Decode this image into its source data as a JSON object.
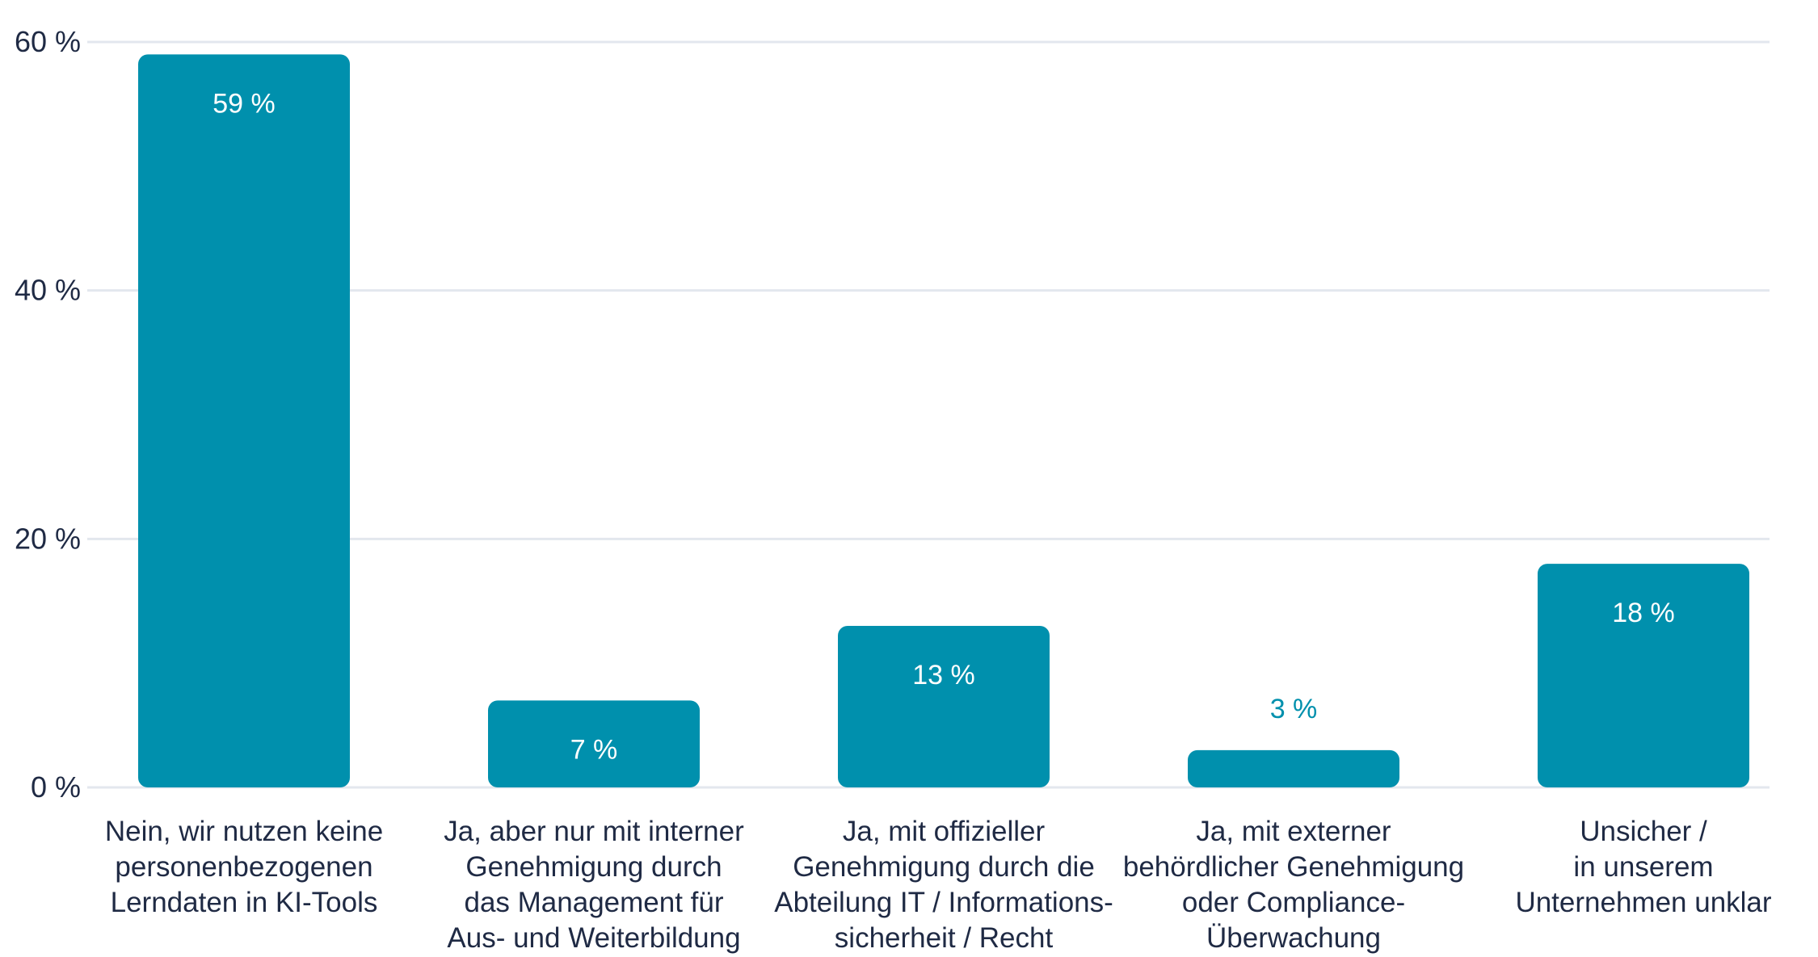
{
  "chart_data": {
    "type": "bar",
    "title": "",
    "xlabel": "",
    "ylabel": "",
    "ylim": [
      0,
      60
    ],
    "yticks": [
      0,
      20,
      40,
      60
    ],
    "ytick_labels": [
      "0 %",
      "20 %",
      "40 %",
      "60 %"
    ],
    "grid": true,
    "categories": [
      "Nein, wir nutzen keine\npersonenbezogenen\nLerndaten in KI-Tools",
      "Ja, aber nur mit interner\nGenehmigung durch\ndas Management für\nAus- und Weiterbildung",
      "Ja, mit offizieller\nGenehmigung durch die\nAbteilung IT / Informations-\nsicherheit / Recht",
      "Ja, mit externer\nbehördlicher Genehmigung\noder Compliance-\nÜberwachung",
      "Unsicher /\nin unserem\nUnternehmen unklar"
    ],
    "values": [
      59,
      7,
      13,
      3,
      18
    ],
    "value_labels": [
      "59 %",
      "7 %",
      "13 %",
      "3 %",
      "18 %"
    ]
  },
  "colors": {
    "bar": "#0090ad",
    "grid": "#e3e7ee",
    "text": "#1f2a44",
    "label_inside": "#ffffff"
  }
}
